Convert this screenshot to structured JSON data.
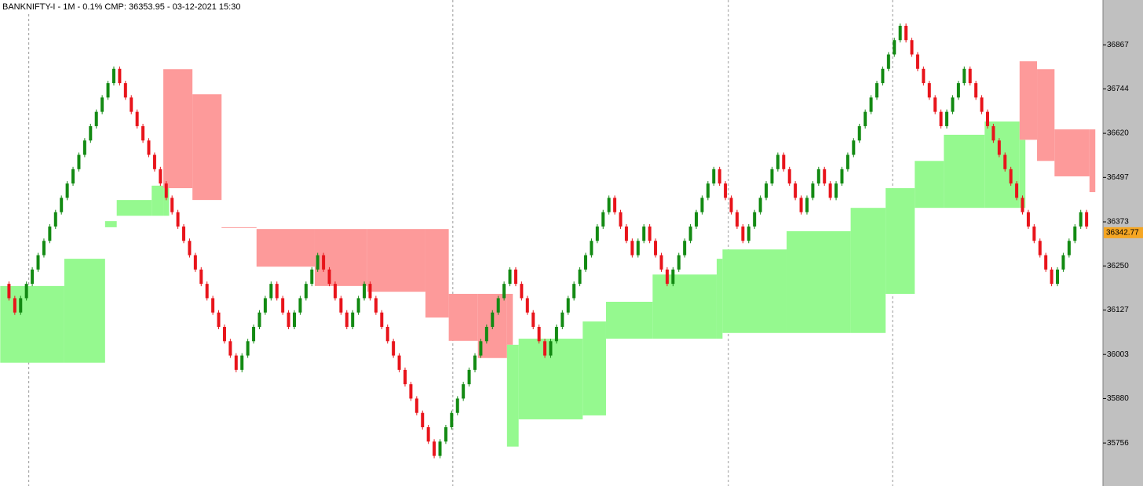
{
  "chart_data": {
    "type": "renko",
    "title": "BANKNIFTY-I - 1M - 0.1% CMP: 36353.95 - 03-12-2021 15:30",
    "up_color": "#138a13",
    "down_color": "#e8141b",
    "ylim": [
      35636,
      36992
    ],
    "yticks": [
      36867,
      36744,
      36620,
      36497,
      36373,
      36250,
      36127,
      36003,
      35880,
      35756
    ],
    "last_price": 36342.77,
    "last_price_color": "#f5a623",
    "session_breaks": [
      4.4,
      77.2,
      124.5,
      152.7
    ],
    "values": [
      36200,
      36160,
      36120,
      36160,
      36200,
      36240,
      36280,
      36320,
      36360,
      36400,
      36440,
      36480,
      36520,
      36560,
      36600,
      36640,
      36680,
      36720,
      36760,
      36800,
      36760,
      36720,
      36680,
      36640,
      36600,
      36560,
      36520,
      36480,
      36440,
      36400,
      36360,
      36320,
      36280,
      36240,
      36200,
      36160,
      36120,
      36080,
      36040,
      36000,
      35960,
      36000,
      36040,
      36080,
      36120,
      36160,
      36200,
      36160,
      36120,
      36080,
      36120,
      36160,
      36200,
      36240,
      36280,
      36240,
      36200,
      36160,
      36120,
      36080,
      36120,
      36160,
      36200,
      36160,
      36120,
      36080,
      36040,
      36000,
      35960,
      35920,
      35880,
      35840,
      35800,
      35760,
      35720,
      35760,
      35800,
      35840,
      35880,
      35920,
      35960,
      36000,
      36040,
      36080,
      36120,
      36160,
      36200,
      36240,
      36200,
      36160,
      36120,
      36080,
      36040,
      36000,
      36040,
      36080,
      36120,
      36160,
      36200,
      36240,
      36280,
      36320,
      36360,
      36400,
      36440,
      36400,
      36360,
      36320,
      36280,
      36320,
      36360,
      36320,
      36280,
      36240,
      36200,
      36240,
      36280,
      36320,
      36360,
      36400,
      36440,
      36480,
      36520,
      36480,
      36440,
      36400,
      36360,
      36320,
      36360,
      36400,
      36440,
      36480,
      36520,
      36560,
      36520,
      36480,
      36440,
      36400,
      36440,
      36480,
      36520,
      36480,
      36440,
      36480,
      36520,
      36560,
      36600,
      36640,
      36680,
      36720,
      36760,
      36800,
      36840,
      36880,
      36920,
      36880,
      36840,
      36800,
      36760,
      36720,
      36680,
      36640,
      36680,
      36720,
      36760,
      36800,
      36760,
      36720,
      36680,
      36640,
      36600,
      36560,
      36520,
      36480,
      36440,
      36400,
      36360,
      36320,
      36280,
      36240,
      36200,
      36240,
      36280,
      36320,
      36360,
      36400,
      36360
    ],
    "bands": [
      {
        "color": "#95f98f",
        "x": [
          0,
          11,
          18,
          20,
          26,
          28
        ],
        "top": [
          36194,
          36270,
          36375,
          36434,
          36474,
          36467
        ],
        "bottom": [
          35980,
          35980,
          36358,
          36390,
          36390,
          36390
        ]
      },
      {
        "color": "#fd9a9a",
        "x": [
          28,
          33,
          38,
          44,
          54,
          63,
          73,
          77,
          82,
          87
        ],
        "top": [
          36799,
          36729,
          36358,
          36353,
          36353,
          36353,
          36353,
          36172,
          36172,
          36172
        ],
        "bottom": [
          36467,
          36434,
          36358,
          36248,
          36194,
          36178,
          36106,
          36041,
          35993,
          36030
        ]
      },
      {
        "color": "#95f98f",
        "x": [
          87,
          89,
          100,
          104,
          112,
          123,
          124,
          135,
          146,
          152,
          157,
          162,
          169,
          175
        ],
        "top": [
          36030,
          36047,
          36095,
          36150,
          36226,
          36270,
          36296,
          36347,
          36412,
          36467,
          36543,
          36616,
          36653,
          36602
        ],
        "bottom": [
          35746,
          35822,
          35833,
          36047,
          36047,
          36047,
          36063,
          36063,
          36063,
          36172,
          36412,
          36412,
          36412,
          36412
        ]
      },
      {
        "color": "#fd9a9a",
        "x": [
          175,
          178,
          181,
          187
        ],
        "top": [
          36821,
          36799,
          36631,
          36631
        ],
        "bottom": [
          36602,
          36543,
          36500,
          36456
        ]
      }
    ]
  }
}
